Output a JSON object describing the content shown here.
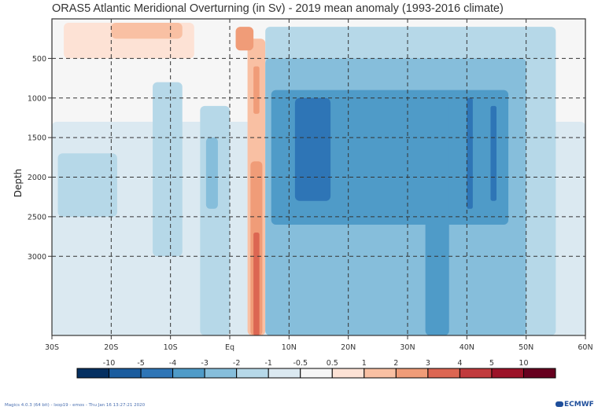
{
  "chart_data": {
    "type": "heatmap",
    "title": "ORAS5 Atlantic Meridional Overturning (in Sv) - 2019 mean anomaly (1993-2016 climate)",
    "xlabel": "",
    "ylabel": "Depth",
    "x_range": [
      -30,
      60
    ],
    "y_range": [
      0,
      4000
    ],
    "x_ticks": [
      {
        "value": -30,
        "label": "30S"
      },
      {
        "value": -20,
        "label": "20S"
      },
      {
        "value": -10,
        "label": "10S"
      },
      {
        "value": 0,
        "label": "Eq"
      },
      {
        "value": 10,
        "label": "10N"
      },
      {
        "value": 20,
        "label": "20N"
      },
      {
        "value": 30,
        "label": "30N"
      },
      {
        "value": 40,
        "label": "40N"
      },
      {
        "value": 50,
        "label": "50N"
      },
      {
        "value": 60,
        "label": "60N"
      }
    ],
    "y_ticks": [
      {
        "value": 500,
        "label": "500"
      },
      {
        "value": 1000,
        "label": "1000"
      },
      {
        "value": 1500,
        "label": "1500"
      },
      {
        "value": 2000,
        "label": "2000"
      },
      {
        "value": 2500,
        "label": "2500"
      },
      {
        "value": 3000,
        "label": "3000"
      }
    ],
    "grid": true,
    "grid_style": "dashed",
    "legend_placement": "bottom",
    "colorbar": {
      "labels": [
        "-10",
        "-5",
        "-4",
        "-3",
        "-2",
        "-1",
        "-0.5",
        "0.5",
        "1",
        "2",
        "3",
        "4",
        "5",
        "10"
      ],
      "colors": [
        "#053061",
        "#1a5c9e",
        "#2e75b6",
        "#4f9bc8",
        "#86bedb",
        "#b6d8e8",
        "#dbe9f1",
        "#f6f6f6",
        "#fde2d5",
        "#f9c0a3",
        "#f09c78",
        "#dc6652",
        "#c13a3d",
        "#9c1228",
        "#67001f"
      ]
    },
    "regions": [
      {
        "lat": [
          -28,
          -6
        ],
        "depth": [
          50,
          500
        ],
        "level": 8,
        "note": "weak positive near surface"
      },
      {
        "lat": [
          -20,
          -8
        ],
        "depth": [
          50,
          250
        ],
        "level": 9
      },
      {
        "lat": [
          -30,
          60
        ],
        "depth": [
          1300,
          4000
        ],
        "level": 6,
        "note": "broad weak negative at depth"
      },
      {
        "lat": [
          -29,
          -19
        ],
        "depth": [
          1700,
          2500
        ],
        "level": 5
      },
      {
        "lat": [
          -13,
          -8
        ],
        "depth": [
          800,
          3000
        ],
        "level": 5
      },
      {
        "lat": [
          -5,
          0
        ],
        "depth": [
          1100,
          4000
        ],
        "level": 5
      },
      {
        "lat": [
          -4,
          -2
        ],
        "depth": [
          1500,
          2400
        ],
        "level": 4
      },
      {
        "lat": [
          3,
          6
        ],
        "depth": [
          250,
          4000
        ],
        "level": 9,
        "note": "positive column near equator"
      },
      {
        "lat": [
          3.5,
          5.5
        ],
        "depth": [
          1800,
          4000
        ],
        "level": 10
      },
      {
        "lat": [
          4,
          5
        ],
        "depth": [
          2700,
          4000
        ],
        "level": 11
      },
      {
        "lat": [
          1,
          4
        ],
        "depth": [
          100,
          400
        ],
        "level": 10
      },
      {
        "lat": [
          4,
          5
        ],
        "depth": [
          600,
          1200
        ],
        "level": 10
      },
      {
        "lat": [
          6,
          55
        ],
        "depth": [
          100,
          4000
        ],
        "level": 5,
        "note": "negative anomaly northern hemisphere"
      },
      {
        "lat": [
          6,
          50
        ],
        "depth": [
          500,
          4000
        ],
        "level": 4
      },
      {
        "lat": [
          7,
          47
        ],
        "depth": [
          900,
          2600
        ],
        "level": 3
      },
      {
        "lat": [
          11,
          17
        ],
        "depth": [
          1000,
          2300
        ],
        "level": 2
      },
      {
        "lat": [
          33,
          37
        ],
        "depth": [
          1000,
          4000
        ],
        "level": 3
      },
      {
        "lat": [
          40,
          41
        ],
        "depth": [
          1000,
          2400
        ],
        "level": 2
      },
      {
        "lat": [
          44,
          45
        ],
        "depth": [
          1100,
          2300
        ],
        "level": 2
      }
    ]
  },
  "footer": {
    "software_text": "Magics 4.0.3 (64 bit) - lxop19 - emos - Thu Jan 16 13:27:21 2020",
    "logo_text": "ECMWF"
  }
}
